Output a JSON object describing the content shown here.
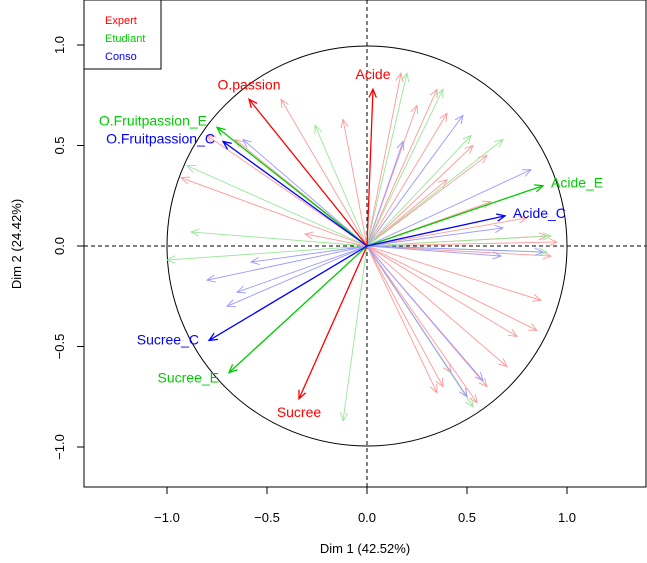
{
  "chart_data": {
    "type": "scatter",
    "subtype": "correlation-circle",
    "title": "",
    "xlabel": "Dim 1 (42.52%)",
    "ylabel": "Dim 2 (24.42%)",
    "xlim": [
      -1.42,
      1.42
    ],
    "ylim": [
      -1.2,
      1.2
    ],
    "xticks": [
      -1.0,
      -0.5,
      0.0,
      0.5,
      1.0
    ],
    "yticks": [
      -1.0,
      -0.5,
      0.0,
      0.5,
      1.0
    ],
    "xtick_labels": [
      "−1.0",
      "−0.5",
      "0.0",
      "0.5",
      "1.0"
    ],
    "ytick_labels": [
      "−1.0",
      "−0.5",
      "0.0",
      "0.5",
      "1.0"
    ],
    "reference_lines": "dashed at x=0 and y=0",
    "unit_circle": true,
    "legend": {
      "position": "top-left",
      "entries": [
        {
          "label": "Expert",
          "color": "#ff0000"
        },
        {
          "label": "Etudiant",
          "color": "#00cd00"
        },
        {
          "label": "Conso",
          "color": "#0000ff"
        }
      ]
    },
    "main_vectors": [
      {
        "label": "Acide",
        "x": 0.03,
        "y": 0.78,
        "color": "#ff0000"
      },
      {
        "label": "O.passion",
        "x": -0.59,
        "y": 0.73,
        "color": "#ff0000"
      },
      {
        "label": "Sucree",
        "x": -0.34,
        "y": -0.76,
        "color": "#ff0000"
      },
      {
        "label": "O.Fruitpassion_E",
        "x": -0.75,
        "y": 0.59,
        "color": "#00cd00"
      },
      {
        "label": "Acide_E",
        "x": 0.88,
        "y": 0.3,
        "color": "#00cd00"
      },
      {
        "label": "Sucree_E",
        "x": -0.69,
        "y": -0.63,
        "color": "#00cd00"
      },
      {
        "label": "O.Fruitpassion_C",
        "x": -0.72,
        "y": 0.52,
        "color": "#0000ff"
      },
      {
        "label": "Acide_C",
        "x": 0.69,
        "y": 0.15,
        "color": "#0000ff"
      },
      {
        "label": "Sucree_C",
        "x": -0.79,
        "y": -0.47,
        "color": "#0000ff"
      }
    ],
    "supplementary_vectors": [
      {
        "x": 0.17,
        "y": 0.86,
        "color": "#ff9999"
      },
      {
        "x": 0.25,
        "y": 0.7,
        "color": "#ff9999"
      },
      {
        "x": 0.35,
        "y": 0.78,
        "color": "#ff9999"
      },
      {
        "x": 0.4,
        "y": 0.66,
        "color": "#ff9999"
      },
      {
        "x": 0.53,
        "y": 0.5,
        "color": "#ff9999"
      },
      {
        "x": 0.6,
        "y": 0.45,
        "color": "#ff9999"
      },
      {
        "x": 0.4,
        "y": 0.33,
        "color": "#ff9999"
      },
      {
        "x": 0.62,
        "y": 0.22,
        "color": "#ff9999"
      },
      {
        "x": 0.8,
        "y": 0.14,
        "color": "#ff9999"
      },
      {
        "x": 0.9,
        "y": 0.05,
        "color": "#ff9999"
      },
      {
        "x": 0.92,
        "y": -0.05,
        "color": "#ff9999"
      },
      {
        "x": 0.87,
        "y": -0.27,
        "color": "#ff9999"
      },
      {
        "x": 0.85,
        "y": -0.42,
        "color": "#ff9999"
      },
      {
        "x": 0.75,
        "y": -0.45,
        "color": "#ff9999"
      },
      {
        "x": 0.7,
        "y": -0.6,
        "color": "#ff9999"
      },
      {
        "x": 0.6,
        "y": -0.7,
        "color": "#ff9999"
      },
      {
        "x": 0.42,
        "y": -0.63,
        "color": "#ff9999"
      },
      {
        "x": 0.38,
        "y": -0.7,
        "color": "#ff9999"
      },
      {
        "x": 0.35,
        "y": -0.73,
        "color": "#ff9999"
      },
      {
        "x": 0.55,
        "y": -0.78,
        "color": "#ff9999"
      },
      {
        "x": 0.5,
        "y": -0.75,
        "color": "#ff9999"
      },
      {
        "x": -0.12,
        "y": 0.63,
        "color": "#ff9999"
      },
      {
        "x": -0.43,
        "y": 0.73,
        "color": "#ff9999"
      },
      {
        "x": -0.66,
        "y": 0.53,
        "color": "#ff9999"
      },
      {
        "x": -0.8,
        "y": 0.55,
        "color": "#ff9999"
      },
      {
        "x": -0.93,
        "y": 0.34,
        "color": "#ff9999"
      },
      {
        "x": -0.31,
        "y": 0.06,
        "color": "#ff9999"
      },
      {
        "x": 0.95,
        "y": 0.02,
        "color": "#ff9999"
      },
      {
        "x": 0.2,
        "y": 0.86,
        "color": "#99e699"
      },
      {
        "x": 0.38,
        "y": 0.78,
        "color": "#99e699"
      },
      {
        "x": 0.52,
        "y": 0.55,
        "color": "#99e699"
      },
      {
        "x": 0.68,
        "y": 0.53,
        "color": "#99e699"
      },
      {
        "x": 0.92,
        "y": 0.05,
        "color": "#99e699"
      },
      {
        "x": 0.9,
        "y": -0.03,
        "color": "#99e699"
      },
      {
        "x": 0.53,
        "y": -0.8,
        "color": "#99e699"
      },
      {
        "x": -0.12,
        "y": -0.87,
        "color": "#99e699"
      },
      {
        "x": -0.26,
        "y": 0.6,
        "color": "#99e699"
      },
      {
        "x": -0.9,
        "y": 0.4,
        "color": "#99e699"
      },
      {
        "x": -0.88,
        "y": 0.07,
        "color": "#99e699"
      },
      {
        "x": -1.0,
        "y": -0.07,
        "color": "#99e699"
      },
      {
        "x": 0.48,
        "y": 0.65,
        "color": "#9999ff"
      },
      {
        "x": 0.18,
        "y": 0.52,
        "color": "#9999ff"
      },
      {
        "x": 0.82,
        "y": 0.38,
        "color": "#9999ff"
      },
      {
        "x": 0.68,
        "y": 0.09,
        "color": "#9999ff"
      },
      {
        "x": 0.88,
        "y": -0.03,
        "color": "#9999ff"
      },
      {
        "x": 0.67,
        "y": -0.05,
        "color": "#9999ff"
      },
      {
        "x": 0.58,
        "y": -0.67,
        "color": "#9999ff"
      },
      {
        "x": 0.5,
        "y": -0.75,
        "color": "#9999ff"
      },
      {
        "x": -0.62,
        "y": 0.53,
        "color": "#9999ff"
      },
      {
        "x": -0.58,
        "y": -0.08,
        "color": "#9999ff"
      },
      {
        "x": -0.8,
        "y": -0.17,
        "color": "#9999ff"
      },
      {
        "x": -0.65,
        "y": -0.23,
        "color": "#9999ff"
      },
      {
        "x": -0.7,
        "y": -0.3,
        "color": "#9999ff"
      }
    ]
  }
}
